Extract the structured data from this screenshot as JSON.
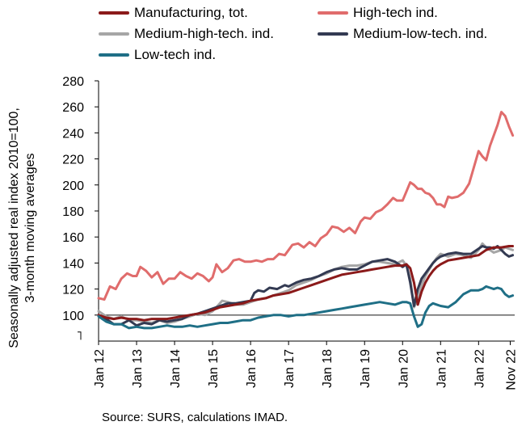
{
  "chart_data": {
    "type": "line",
    "title": "",
    "ylabel_line1": "Seasonally adjusted real index 2010=100,",
    "ylabel_line2": "3-month moving averages",
    "ylim": [
      80,
      280
    ],
    "yticks": [
      100,
      120,
      140,
      160,
      180,
      200,
      220,
      240,
      260,
      280
    ],
    "xlim": [
      2012.0,
      2022.95
    ],
    "xticks": [
      {
        "label": "Jan 12",
        "x": 2012.0
      },
      {
        "label": "Jan 13",
        "x": 2013.0
      },
      {
        "label": "Jan 14",
        "x": 2014.0
      },
      {
        "label": "Jan 15",
        "x": 2015.0
      },
      {
        "label": "Jan 16",
        "x": 2016.0
      },
      {
        "label": "Jan 17",
        "x": 2017.0
      },
      {
        "label": "Jan 18",
        "x": 2018.0
      },
      {
        "label": "Jan 19",
        "x": 2019.0
      },
      {
        "label": "Jan 20",
        "x": 2020.0
      },
      {
        "label": "Jan 21",
        "x": 2021.0
      },
      {
        "label": "Jan 22",
        "x": 2022.0
      },
      {
        "label": "Nov 22",
        "x": 2022.833
      }
    ],
    "reference_line": 100,
    "grid": false,
    "legend_position": "top",
    "series": [
      {
        "name": "High-tech ind.",
        "color": "#e06c6c",
        "x": [
          2012.0,
          2012.15,
          2012.3,
          2012.45,
          2012.6,
          2012.75,
          2012.9,
          2013.0,
          2013.1,
          2013.25,
          2013.4,
          2013.55,
          2013.7,
          2013.85,
          2014.0,
          2014.15,
          2014.3,
          2014.45,
          2014.6,
          2014.75,
          2014.9,
          2015.0,
          2015.1,
          2015.25,
          2015.4,
          2015.55,
          2015.7,
          2015.85,
          2016.0,
          2016.15,
          2016.3,
          2016.45,
          2016.6,
          2016.75,
          2016.9,
          2017.0,
          2017.1,
          2017.25,
          2017.4,
          2017.55,
          2017.7,
          2017.85,
          2018.0,
          2018.15,
          2018.3,
          2018.45,
          2018.6,
          2018.75,
          2018.9,
          2019.0,
          2019.15,
          2019.3,
          2019.45,
          2019.6,
          2019.75,
          2019.85,
          2020.0,
          2020.1,
          2020.2,
          2020.3,
          2020.4,
          2020.5,
          2020.6,
          2020.7,
          2020.8,
          2020.9,
          2021.0,
          2021.1,
          2021.2,
          2021.3,
          2021.45,
          2021.6,
          2021.75,
          2021.85,
          2022.0,
          2022.1,
          2022.2,
          2022.3,
          2022.4,
          2022.5,
          2022.6,
          2022.7,
          2022.8,
          2022.9
        ],
        "values": [
          113,
          112,
          122,
          120,
          128,
          132,
          130,
          130,
          137,
          134,
          129,
          133,
          124,
          128,
          128,
          133,
          130,
          128,
          132,
          130,
          126,
          129,
          139,
          133,
          136,
          142,
          143,
          141,
          141,
          142,
          141,
          143,
          143,
          147,
          146,
          150,
          154,
          155,
          152,
          156,
          153,
          159,
          162,
          168,
          167,
          164,
          167,
          163,
          172,
          175,
          174,
          179,
          181,
          185,
          190,
          188,
          188,
          195,
          202,
          200,
          197,
          197,
          194,
          193,
          190,
          185,
          185,
          183,
          191,
          190,
          191,
          194,
          201,
          211,
          226,
          222,
          219,
          230,
          238,
          246,
          256,
          253,
          245,
          238
        ]
      },
      {
        "name": "Medium-high-tech. ind.",
        "color": "#a6a6a6",
        "x": [
          2012.0,
          2012.2,
          2012.4,
          2012.6,
          2012.8,
          2013.0,
          2013.2,
          2013.4,
          2013.6,
          2013.8,
          2014.0,
          2014.2,
          2014.4,
          2014.6,
          2014.8,
          2015.0,
          2015.1,
          2015.25,
          2015.4,
          2015.6,
          2015.8,
          2016.0,
          2016.2,
          2016.4,
          2016.6,
          2016.8,
          2017.0,
          2017.2,
          2017.4,
          2017.6,
          2017.8,
          2018.0,
          2018.2,
          2018.4,
          2018.6,
          2018.8,
          2019.0,
          2019.2,
          2019.4,
          2019.6,
          2019.8,
          2020.0,
          2020.1,
          2020.2,
          2020.3,
          2020.4,
          2020.5,
          2020.6,
          2020.7,
          2020.8,
          2020.9,
          2021.0,
          2021.2,
          2021.4,
          2021.6,
          2021.8,
          2022.0,
          2022.1,
          2022.2,
          2022.3,
          2022.4,
          2022.5,
          2022.6,
          2022.7,
          2022.8,
          2022.9
        ],
        "values": [
          103,
          99,
          97,
          99,
          96,
          96,
          95,
          94,
          96,
          94,
          95,
          97,
          99,
          101,
          100,
          103,
          106,
          111,
          110,
          108,
          108,
          110,
          112,
          113,
          115,
          117,
          119,
          123,
          125,
          127,
          130,
          132,
          135,
          137,
          138,
          138,
          139,
          141,
          141,
          140,
          139,
          142,
          138,
          128,
          106,
          112,
          123,
          130,
          135,
          140,
          144,
          147,
          145,
          147,
          146,
          144,
          150,
          155,
          152,
          150,
          148,
          149,
          150,
          152,
          151,
          150
        ]
      },
      {
        "name": "Medium-low-tech. ind.",
        "color": "#333a52",
        "x": [
          2012.0,
          2012.2,
          2012.4,
          2012.6,
          2012.8,
          2013.0,
          2013.2,
          2013.4,
          2013.6,
          2013.8,
          2014.0,
          2014.2,
          2014.4,
          2014.6,
          2014.8,
          2015.0,
          2015.2,
          2015.4,
          2015.6,
          2015.8,
          2016.0,
          2016.1,
          2016.2,
          2016.35,
          2016.5,
          2016.7,
          2016.9,
          2017.0,
          2017.2,
          2017.4,
          2017.6,
          2017.8,
          2018.0,
          2018.2,
          2018.4,
          2018.6,
          2018.8,
          2019.0,
          2019.2,
          2019.4,
          2019.6,
          2019.8,
          2020.0,
          2020.1,
          2020.2,
          2020.3,
          2020.4,
          2020.5,
          2020.6,
          2020.7,
          2020.8,
          2020.9,
          2021.0,
          2021.2,
          2021.4,
          2021.6,
          2021.8,
          2022.0,
          2022.1,
          2022.2,
          2022.3,
          2022.4,
          2022.5,
          2022.6,
          2022.7,
          2022.8,
          2022.9
        ],
        "values": [
          100,
          97,
          93,
          93,
          96,
          92,
          94,
          93,
          96,
          95,
          96,
          97,
          100,
          101,
          103,
          105,
          107,
          109,
          109,
          110,
          111,
          117,
          119,
          118,
          121,
          120,
          123,
          122,
          125,
          127,
          128,
          130,
          133,
          135,
          136,
          135,
          135,
          138,
          141,
          142,
          143,
          141,
          137,
          139,
          125,
          107,
          120,
          128,
          132,
          136,
          140,
          143,
          145,
          147,
          148,
          147,
          147,
          151,
          153,
          152,
          152,
          151,
          153,
          150,
          147,
          145,
          146
        ]
      },
      {
        "name": "Manufacturing, tot.",
        "color": "#8b1a1a",
        "x": [
          2012.0,
          2012.2,
          2012.4,
          2012.6,
          2012.8,
          2013.0,
          2013.2,
          2013.4,
          2013.6,
          2013.8,
          2014.0,
          2014.2,
          2014.4,
          2014.6,
          2014.8,
          2015.0,
          2015.2,
          2015.4,
          2015.6,
          2015.8,
          2016.0,
          2016.2,
          2016.4,
          2016.6,
          2016.8,
          2017.0,
          2017.2,
          2017.4,
          2017.6,
          2017.8,
          2018.0,
          2018.2,
          2018.4,
          2018.6,
          2018.8,
          2019.0,
          2019.2,
          2019.4,
          2019.6,
          2019.8,
          2020.0,
          2020.1,
          2020.2,
          2020.3,
          2020.4,
          2020.5,
          2020.6,
          2020.7,
          2020.8,
          2020.9,
          2021.0,
          2021.2,
          2021.4,
          2021.6,
          2021.8,
          2022.0,
          2022.2,
          2022.4,
          2022.6,
          2022.8,
          2022.9
        ],
        "values": [
          100,
          98,
          97,
          98,
          97,
          97,
          96,
          97,
          97,
          97,
          98,
          99,
          100,
          101,
          102,
          104,
          106,
          107,
          108,
          109,
          111,
          112,
          113,
          115,
          116,
          117,
          119,
          121,
          123,
          125,
          127,
          129,
          131,
          132,
          133,
          134,
          135,
          136,
          137,
          138,
          138,
          139,
          136,
          125,
          108,
          118,
          125,
          130,
          134,
          137,
          139,
          142,
          143,
          144,
          145,
          146,
          150,
          152,
          152,
          153,
          153
        ]
      },
      {
        "name": "Low-tech ind.",
        "color": "#1f6f86",
        "x": [
          2012.0,
          2012.2,
          2012.4,
          2012.6,
          2012.8,
          2013.0,
          2013.2,
          2013.4,
          2013.6,
          2013.8,
          2014.0,
          2014.2,
          2014.4,
          2014.6,
          2014.8,
          2015.0,
          2015.2,
          2015.4,
          2015.6,
          2015.8,
          2016.0,
          2016.2,
          2016.4,
          2016.6,
          2016.8,
          2017.0,
          2017.2,
          2017.4,
          2017.6,
          2017.8,
          2018.0,
          2018.2,
          2018.4,
          2018.6,
          2018.8,
          2019.0,
          2019.2,
          2019.4,
          2019.6,
          2019.8,
          2020.0,
          2020.1,
          2020.2,
          2020.3,
          2020.4,
          2020.5,
          2020.6,
          2020.7,
          2020.8,
          2020.9,
          2021.0,
          2021.2,
          2021.4,
          2021.6,
          2021.8,
          2022.0,
          2022.1,
          2022.2,
          2022.3,
          2022.4,
          2022.5,
          2022.6,
          2022.7,
          2022.8,
          2022.9
        ],
        "values": [
          99,
          95,
          93,
          93,
          90,
          91,
          90,
          90,
          91,
          92,
          91,
          91,
          92,
          91,
          92,
          93,
          94,
          94,
          95,
          96,
          96,
          98,
          99,
          100,
          100,
          99,
          100,
          100,
          101,
          102,
          103,
          104,
          105,
          106,
          107,
          108,
          109,
          110,
          109,
          108,
          110,
          110,
          109,
          99,
          91,
          93,
          102,
          107,
          109,
          108,
          107,
          106,
          110,
          116,
          119,
          119,
          120,
          122,
          121,
          120,
          121,
          120,
          116,
          114,
          115
        ]
      }
    ]
  },
  "legend": [
    {
      "label": "Manufacturing, tot.",
      "color": "#8b1a1a"
    },
    {
      "label": "High-tech ind.",
      "color": "#e06c6c"
    },
    {
      "label": "Medium-high-tech. ind.",
      "color": "#a6a6a6"
    },
    {
      "label": "Medium-low-tech. ind.",
      "color": "#333a52"
    },
    {
      "label": "Low-tech ind.",
      "color": "#1f6f86"
    }
  ],
  "source": "Source: SURS, calculations IMAD."
}
